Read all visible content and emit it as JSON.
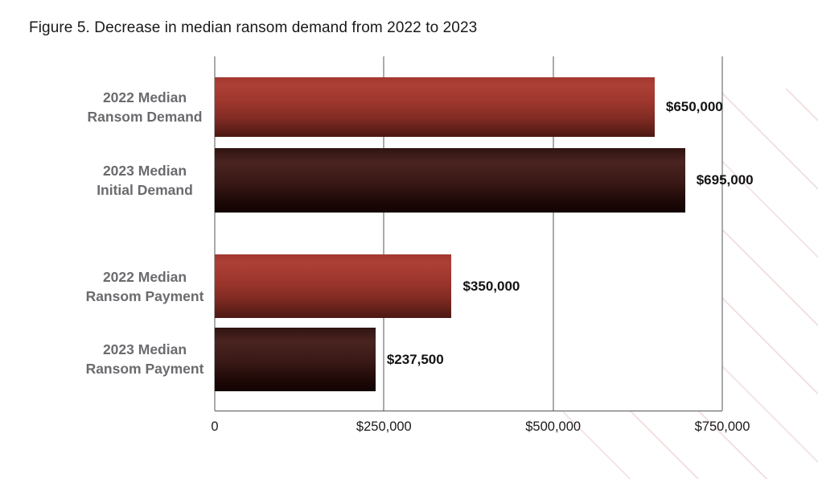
{
  "title": "Figure 5. Decrease in median ransom demand from 2022 to 2023",
  "chart_data": {
    "type": "bar",
    "orientation": "horizontal",
    "title": "Figure 5. Decrease in median ransom demand from 2022 to 2023",
    "xlabel": "",
    "ylabel": "",
    "xlim": [
      0,
      750000
    ],
    "grid": "vertical gridlines at ticks",
    "legend": "none",
    "x_ticks": [
      {
        "value": 0,
        "label": "0"
      },
      {
        "value": 250000,
        "label": "$250,000"
      },
      {
        "value": 500000,
        "label": "$500,000"
      },
      {
        "value": 750000,
        "label": "$750,000"
      }
    ],
    "bars": [
      {
        "label_line1": "2022 Median",
        "label_line2": "Ransom Demand",
        "value": 650000,
        "value_label": "$650,000",
        "color_style": "red"
      },
      {
        "label_line1": "2023 Median",
        "label_line2": "Initial Demand",
        "value": 695000,
        "value_label": "$695,000",
        "color_style": "dark"
      },
      {
        "label_line1": "2022 Median",
        "label_line2": "Ransom Payment",
        "value": 350000,
        "value_label": "$350,000",
        "color_style": "red"
      },
      {
        "label_line1": "2023 Median",
        "label_line2": "Ransom Payment",
        "value": 237500,
        "value_label": "$237,500",
        "color_style": "dark"
      }
    ]
  },
  "colors": {
    "red_bar_top": "#ac3f36",
    "red_bar_bottom": "#4c1813",
    "dark_bar_top": "#4a2420",
    "dark_bar_bottom": "#130302",
    "category_label": "#6a6b6e",
    "value_label": "#131313",
    "axis_line": "#55565a",
    "title_text": "#191919",
    "watermark_stripe": "#f3e2e2"
  }
}
